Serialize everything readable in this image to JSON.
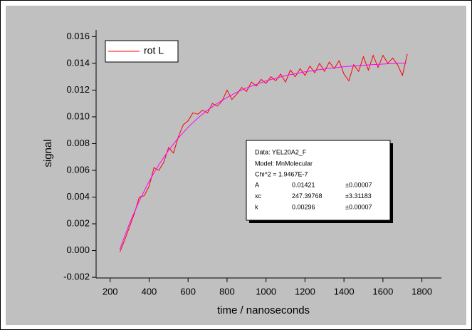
{
  "chart_data": {
    "type": "line",
    "xlabel": "time / nanoseconds",
    "ylabel": "signal",
    "xlim": [
      128,
      1900
    ],
    "ylim": [
      -0.00205,
      0.0165
    ],
    "xticks": [
      200,
      400,
      600,
      800,
      1000,
      1200,
      1400,
      1600,
      1800
    ],
    "yticks": [
      -0.002,
      {
        "value": 0,
        "label": "0.000"
      },
      0.002,
      0.004,
      0.006,
      0.008,
      {
        "value": 0.01,
        "label": "0.010"
      },
      0.012,
      0.014,
      0.016
    ],
    "legend": "top-left",
    "series": [
      {
        "name": "rot L",
        "color": "#ff0000",
        "x": [
          250,
          275,
          300,
          325,
          350,
          375,
          400,
          425,
          450,
          475,
          500,
          525,
          550,
          575,
          600,
          625,
          650,
          675,
          700,
          725,
          750,
          775,
          800,
          825,
          850,
          875,
          900,
          925,
          950,
          975,
          1000,
          1025,
          1050,
          1075,
          1100,
          1125,
          1150,
          1175,
          1200,
          1225,
          1250,
          1275,
          1300,
          1325,
          1350,
          1375,
          1400,
          1425,
          1450,
          1475,
          1500,
          1525,
          1550,
          1575,
          1600,
          1625,
          1650,
          1675,
          1700,
          1725
        ],
        "values": [
          -0.0001,
          0.0008,
          0.0018,
          0.0028,
          0.004,
          0.0041,
          0.0048,
          0.0062,
          0.006,
          0.0066,
          0.0077,
          0.0073,
          0.0085,
          0.0094,
          0.0097,
          0.0103,
          0.0102,
          0.0105,
          0.0103,
          0.011,
          0.0108,
          0.0112,
          0.012,
          0.0113,
          0.0117,
          0.0122,
          0.0119,
          0.0126,
          0.0123,
          0.0128,
          0.0125,
          0.013,
          0.0127,
          0.0132,
          0.0126,
          0.0135,
          0.013,
          0.0136,
          0.0131,
          0.0138,
          0.0133,
          0.014,
          0.0134,
          0.0141,
          0.0136,
          0.0142,
          0.0132,
          0.0127,
          0.0139,
          0.0134,
          0.0145,
          0.0135,
          0.0146,
          0.0137,
          0.0146,
          0.014,
          0.0144,
          0.0139,
          0.0131,
          0.0147
        ]
      },
      {
        "color": "#ff00ff",
        "x": [
          250,
          300,
          350,
          400,
          450,
          500,
          550,
          600,
          650,
          700,
          750,
          800,
          850,
          900,
          1000,
          1100,
          1200,
          1300,
          1400,
          1500,
          1600,
          1720
        ],
        "values": [
          0.00011,
          0.00205,
          0.00373,
          0.00518,
          0.00642,
          0.0075,
          0.00842,
          0.00922,
          0.00991,
          0.0105,
          0.01101,
          0.01145,
          0.01184,
          0.01216,
          0.01269,
          0.01308,
          0.01337,
          0.01359,
          0.01375,
          0.01386,
          0.01395,
          0.01403
        ]
      }
    ],
    "fit_box": {
      "data": "Data: YEL20A2_F",
      "model": "Model: MnMolecular",
      "chi2": "Chi^2 = 1.9467E-7",
      "rows": [
        [
          "A",
          "0.01421",
          "±0.00007"
        ],
        [
          "xc",
          "247.39768",
          "±3.31183"
        ],
        [
          "k",
          "0.00296",
          "±0.00007"
        ]
      ]
    }
  }
}
